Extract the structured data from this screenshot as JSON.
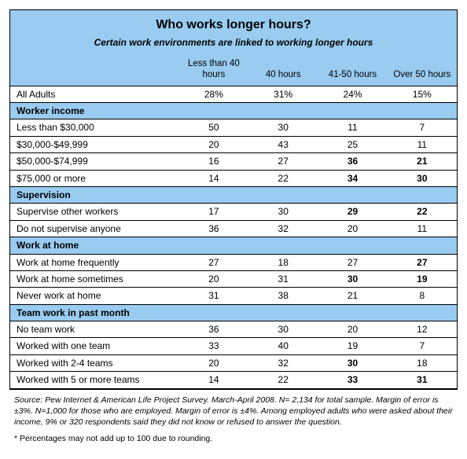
{
  "colors": {
    "panel_bg": "#99ccf0",
    "row_bg": "#ffffff",
    "border": "#000000",
    "text": "#000000"
  },
  "typography": {
    "title_fontsize_pt": 12,
    "subtitle_fontsize_pt": 9,
    "body_fontsize_pt": 9,
    "footnote_fontsize_pt": 8
  },
  "title": "Who works longer hours?",
  "subtitle": "Certain work environments are linked to working longer hours",
  "columns": [
    "",
    "Less than 40 hours",
    "40 hours",
    "41-50 hours",
    "Over 50 hours"
  ],
  "rows": [
    {
      "type": "data",
      "label": "All Adults",
      "vals": [
        "28%",
        "31%",
        "24%",
        "15%"
      ],
      "bold": [
        false,
        false,
        false,
        false
      ]
    },
    {
      "type": "section",
      "label": "Worker income"
    },
    {
      "type": "data",
      "label": "Less than $30,000",
      "vals": [
        "50",
        "30",
        "11",
        "7"
      ],
      "bold": [
        false,
        false,
        false,
        false
      ]
    },
    {
      "type": "data",
      "label": "$30,000-$49,999",
      "vals": [
        "20",
        "43",
        "25",
        "11"
      ],
      "bold": [
        false,
        false,
        false,
        false
      ]
    },
    {
      "type": "data",
      "label": "$50,000-$74,999",
      "vals": [
        "16",
        "27",
        "36",
        "21"
      ],
      "bold": [
        false,
        false,
        true,
        true
      ]
    },
    {
      "type": "data",
      "label": "$75,000 or more",
      "vals": [
        "14",
        "22",
        "34",
        "30"
      ],
      "bold": [
        false,
        false,
        true,
        true
      ]
    },
    {
      "type": "section",
      "label": "Supervision"
    },
    {
      "type": "data",
      "label": "Supervise other workers",
      "vals": [
        "17",
        "30",
        "29",
        "22"
      ],
      "bold": [
        false,
        false,
        true,
        true
      ]
    },
    {
      "type": "data",
      "label": "Do not supervise anyone",
      "vals": [
        "36",
        "32",
        "20",
        "11"
      ],
      "bold": [
        false,
        false,
        false,
        false
      ]
    },
    {
      "type": "section",
      "label": "Work at home"
    },
    {
      "type": "data",
      "label": "Work at home frequently",
      "vals": [
        "27",
        "18",
        "27",
        "27"
      ],
      "bold": [
        false,
        false,
        false,
        true
      ]
    },
    {
      "type": "data",
      "label": "Work at home sometimes",
      "vals": [
        "20",
        "31",
        "30",
        "19"
      ],
      "bold": [
        false,
        false,
        true,
        true
      ]
    },
    {
      "type": "data",
      "label": "Never work at home",
      "vals": [
        "31",
        "38",
        "21",
        "8"
      ],
      "bold": [
        false,
        false,
        false,
        false
      ]
    },
    {
      "type": "section",
      "label": "Team work in past month"
    },
    {
      "type": "data",
      "label": "No team work",
      "vals": [
        "36",
        "30",
        "20",
        "12"
      ],
      "bold": [
        false,
        false,
        false,
        false
      ]
    },
    {
      "type": "data",
      "label": "Worked with one team",
      "vals": [
        "33",
        "40",
        "19",
        "7"
      ],
      "bold": [
        false,
        false,
        false,
        false
      ]
    },
    {
      "type": "data",
      "label": "Worked with 2-4 teams",
      "vals": [
        "20",
        "32",
        "30",
        "18"
      ],
      "bold": [
        false,
        false,
        true,
        false
      ]
    },
    {
      "type": "data",
      "label": "Worked with 5 or more teams",
      "vals": [
        "14",
        "22",
        "33",
        "31"
      ],
      "bold": [
        false,
        false,
        true,
        true
      ]
    }
  ],
  "source_note": "Source:  Pew Internet & American Life Project Survey. March-April 2008. N= 2,134 for total sample. Margin of error is ±3%.  N=1,000 for those who are employed. Margin of error is ±4%. Among employed adults who were asked about their income, 9% or 320 respondents said they did not know or refused to answer the question.",
  "rounding_note": "* Percentages may not add up to 100 due to rounding."
}
